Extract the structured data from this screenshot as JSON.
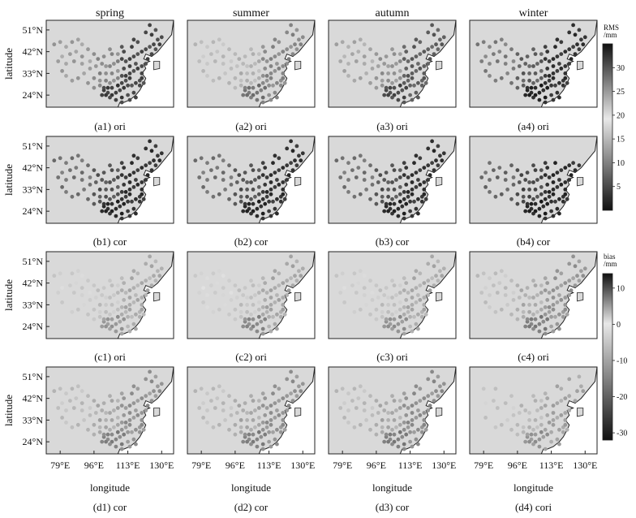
{
  "chart_data": {
    "type": "scatter",
    "columns": [
      "spring",
      "summer",
      "autumn",
      "winter"
    ],
    "xlabel": "longitude",
    "ylabel": "latitude",
    "x_ticks": [
      "79°E",
      "96°E",
      "113°E",
      "130°E"
    ],
    "y_ticks": [
      "51°N",
      "42°N",
      "33°N",
      "24°N"
    ],
    "x_tick_values": [
      79,
      96,
      113,
      130
    ],
    "y_tick_values": [
      51,
      42,
      33,
      24
    ],
    "xlim": [
      72,
      136
    ],
    "ylim": [
      19,
      55
    ],
    "grid": false,
    "colorbars": [
      {
        "label_lines": [
          "RMS",
          "/mm"
        ],
        "range": [
          0,
          35
        ],
        "ticks": [
          5,
          10,
          15,
          20,
          25,
          30
        ],
        "colormap": "black-to-white"
      },
      {
        "label_lines": [
          "bias",
          "/mm"
        ],
        "range": [
          -32,
          14
        ],
        "ticks": [
          10,
          0,
          -10,
          -20,
          -30
        ],
        "colormap": "black-to-white"
      }
    ],
    "rows": [
      {
        "id": "a",
        "metric": "RMS",
        "captions": [
          "(a1) ori",
          "(a2) ori",
          "(a3) ori",
          "(a4) ori"
        ]
      },
      {
        "id": "b",
        "metric": "RMS",
        "captions": [
          "(b1) cor",
          "(b2) cor",
          "(b3) cor",
          "(b4) cor"
        ]
      },
      {
        "id": "c",
        "metric": "bias",
        "captions": [
          "(c1) ori",
          "(c2) ori",
          "(c3) ori",
          "(c4) ori"
        ]
      },
      {
        "id": "d",
        "metric": "bias",
        "captions": [
          "(d1) cor",
          "(d2) cor",
          "(d3) cor",
          "(d4) cori"
        ]
      }
    ],
    "panel_levels": {
      "a": [
        [
          0.2,
          0.25,
          0.55,
          0.65
        ],
        [
          0.45,
          0.55,
          0.75,
          0.8
        ],
        [
          0.25,
          0.35,
          0.6,
          0.7
        ],
        [
          0.08,
          0.15,
          0.35,
          0.5
        ]
      ],
      "b": [
        [
          0.1,
          0.15,
          0.3,
          0.45
        ],
        [
          0.1,
          0.15,
          0.3,
          0.45
        ],
        [
          0.1,
          0.15,
          0.3,
          0.45
        ],
        [
          0.08,
          0.12,
          0.25,
          0.4
        ]
      ],
      "c": [
        [
          0.62,
          0.72,
          0.82,
          0.88
        ],
        [
          0.55,
          0.7,
          0.82,
          0.9
        ],
        [
          0.6,
          0.72,
          0.82,
          0.88
        ],
        [
          0.5,
          0.62,
          0.72,
          0.82
        ]
      ],
      "d": [
        [
          0.52,
          0.6,
          0.7,
          0.8
        ],
        [
          0.52,
          0.6,
          0.7,
          0.8
        ],
        [
          0.5,
          0.58,
          0.7,
          0.8
        ],
        [
          0.6,
          0.68,
          0.76,
          0.84
        ]
      ]
    },
    "stations": [
      [
        76,
        45
      ],
      [
        79,
        46
      ],
      [
        82,
        44
      ],
      [
        85,
        46
      ],
      [
        88,
        47
      ],
      [
        90,
        45
      ],
      [
        93,
        43
      ],
      [
        96,
        41
      ],
      [
        80,
        40
      ],
      [
        84,
        41
      ],
      [
        87,
        42
      ],
      [
        90,
        40
      ],
      [
        78,
        38
      ],
      [
        82,
        37
      ],
      [
        86,
        38
      ],
      [
        90,
        37
      ],
      [
        94,
        38
      ],
      [
        98,
        39
      ],
      [
        100,
        37
      ],
      [
        102,
        36
      ],
      [
        104,
        36
      ],
      [
        106,
        37
      ],
      [
        108,
        38
      ],
      [
        110,
        39
      ],
      [
        112,
        38
      ],
      [
        114,
        39
      ],
      [
        116,
        40
      ],
      [
        118,
        41
      ],
      [
        120,
        42
      ],
      [
        122,
        43
      ],
      [
        124,
        44
      ],
      [
        126,
        45
      ],
      [
        128,
        47
      ],
      [
        125,
        49
      ],
      [
        122,
        50
      ],
      [
        118,
        46
      ],
      [
        115,
        44
      ],
      [
        111,
        42
      ],
      [
        108,
        41
      ],
      [
        105,
        41
      ],
      [
        101,
        40
      ],
      [
        97,
        36
      ],
      [
        94,
        35
      ],
      [
        91,
        33
      ],
      [
        88,
        31
      ],
      [
        85,
        30
      ],
      [
        82,
        32
      ],
      [
        80,
        34
      ],
      [
        96,
        31
      ],
      [
        99,
        30
      ],
      [
        102,
        30
      ],
      [
        104,
        29
      ],
      [
        106,
        30
      ],
      [
        108,
        31
      ],
      [
        110,
        32
      ],
      [
        112,
        32
      ],
      [
        114,
        33
      ],
      [
        116,
        34
      ],
      [
        118,
        35
      ],
      [
        120,
        36
      ],
      [
        117,
        37
      ],
      [
        114,
        36
      ],
      [
        111,
        35
      ],
      [
        108,
        34
      ],
      [
        105,
        33
      ],
      [
        102,
        33
      ],
      [
        99,
        33
      ],
      [
        101,
        26
      ],
      [
        103,
        25
      ],
      [
        105,
        24
      ],
      [
        107,
        25
      ],
      [
        109,
        26
      ],
      [
        111,
        27
      ],
      [
        113,
        28
      ],
      [
        115,
        28
      ],
      [
        117,
        29
      ],
      [
        119,
        30
      ],
      [
        120,
        31
      ],
      [
        116,
        25
      ],
      [
        113,
        24
      ],
      [
        110,
        23
      ],
      [
        107,
        22
      ],
      [
        104,
        23
      ],
      [
        102,
        24
      ],
      [
        100,
        24
      ],
      [
        101,
        27
      ],
      [
        103,
        27
      ],
      [
        105,
        27
      ],
      [
        108,
        28
      ],
      [
        110,
        29
      ],
      [
        112,
        30
      ],
      [
        114,
        31
      ],
      [
        119,
        28
      ],
      [
        121,
        29
      ],
      [
        117,
        23
      ],
      [
        114,
        22
      ],
      [
        110,
        21
      ],
      [
        120,
        33
      ],
      [
        122,
        37
      ],
      [
        123,
        39
      ],
      [
        125,
        41
      ],
      [
        127,
        43
      ],
      [
        129,
        45
      ],
      [
        130,
        48
      ],
      [
        127,
        51
      ],
      [
        124,
        53
      ],
      [
        104,
        43
      ],
      [
        110,
        44
      ],
      [
        116,
        47
      ],
      [
        96,
        27
      ],
      [
        93,
        29
      ],
      [
        99,
        28
      ]
    ],
    "winter_d_missing": [
      0,
      2,
      4,
      5,
      7,
      10,
      12,
      13,
      15,
      20,
      24,
      30,
      33,
      36,
      40,
      46,
      54,
      60,
      66,
      74,
      80,
      90,
      95,
      99,
      101,
      103,
      105
    ]
  }
}
